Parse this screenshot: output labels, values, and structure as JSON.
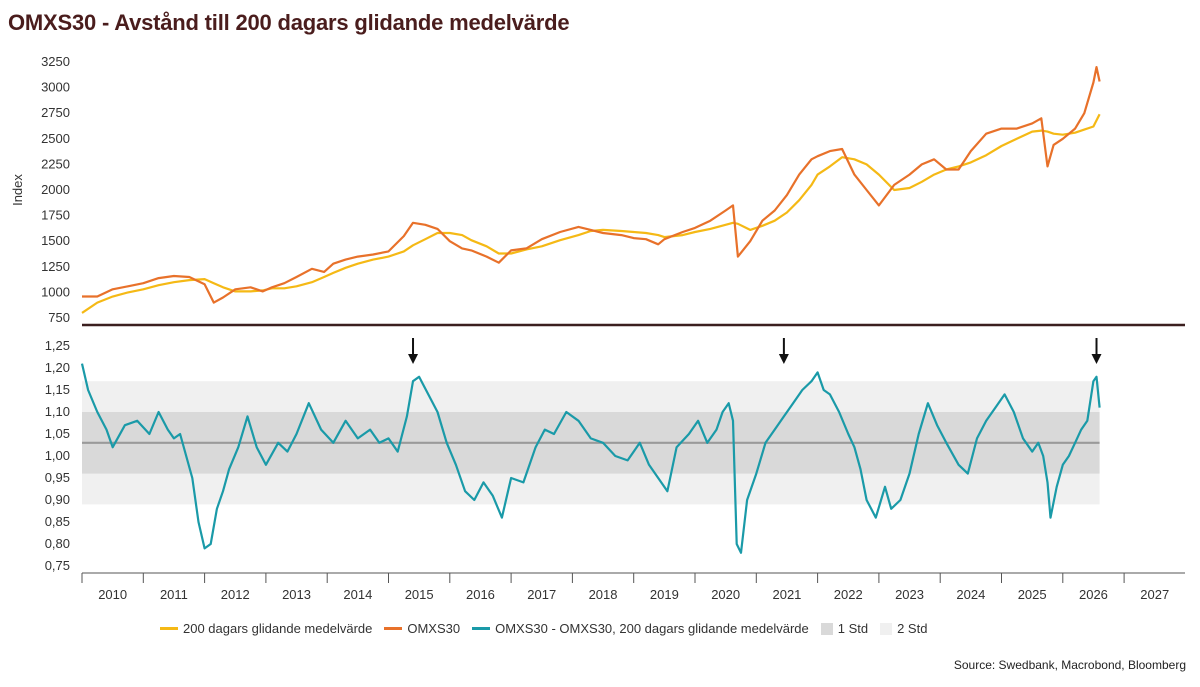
{
  "title": "OMXS30 - Avstånd till 200 dagars glidande medelvärde",
  "source": "Source: Swedbank, Macrobond, Bloomberg",
  "colors": {
    "ma200": "#f5b915",
    "omxs30": "#e8712a",
    "ratio": "#1a9aa8",
    "std1": "#d9d9d9",
    "std2": "#f0f0f0",
    "mean_line": "#9a9a9a",
    "divider": "#3b1f1f",
    "arrow": "#111111"
  },
  "legend": [
    {
      "key": "ma200",
      "label": "200 dagars glidande medelvärde",
      "kind": "line"
    },
    {
      "key": "omxs30",
      "label": "OMXS30",
      "kind": "line"
    },
    {
      "key": "ratio",
      "label": "OMXS30 - OMXS30, 200 dagars glidande medelvärde",
      "kind": "line"
    },
    {
      "key": "std1",
      "label": "1 Std",
      "kind": "box"
    },
    {
      "key": "std2",
      "label": "2 Std",
      "kind": "box"
    }
  ],
  "chart_data": [
    {
      "type": "line",
      "ylabel": "Index",
      "ylim": [
        750,
        3300
      ],
      "yticks": [
        "750",
        "1000",
        "1250",
        "1500",
        "1750",
        "2000",
        "2250",
        "2500",
        "2750",
        "3000",
        "3250"
      ],
      "x": [
        2009.5,
        2009.75,
        2010.0,
        2010.25,
        2010.5,
        2010.75,
        2011.0,
        2011.25,
        2011.5,
        2011.65,
        2011.8,
        2012.0,
        2012.25,
        2012.45,
        2012.6,
        2012.8,
        2013.0,
        2013.25,
        2013.45,
        2013.6,
        2013.8,
        2014.0,
        2014.25,
        2014.5,
        2014.75,
        2014.9,
        2015.1,
        2015.3,
        2015.5,
        2015.7,
        2015.85,
        2016.1,
        2016.3,
        2016.5,
        2016.75,
        2017.0,
        2017.3,
        2017.6,
        2017.8,
        2018.0,
        2018.3,
        2018.5,
        2018.7,
        2018.9,
        2019.0,
        2019.3,
        2019.5,
        2019.75,
        2020.0,
        2020.12,
        2020.2,
        2020.4,
        2020.6,
        2020.8,
        2021.0,
        2021.2,
        2021.4,
        2021.5,
        2021.7,
        2021.9,
        2022.1,
        2022.3,
        2022.5,
        2022.75,
        2023.0,
        2023.2,
        2023.4,
        2023.6,
        2023.8,
        2024.0,
        2024.25,
        2024.5,
        2024.75,
        2025.0,
        2025.15,
        2025.25,
        2025.35,
        2025.5,
        2025.7,
        2025.85,
        2026.0,
        2026.05,
        2026.1
      ],
      "series": [
        {
          "name": "OMXS30",
          "values": [
            960,
            960,
            1030,
            1060,
            1090,
            1140,
            1160,
            1150,
            1080,
            900,
            950,
            1030,
            1050,
            1010,
            1050,
            1090,
            1150,
            1230,
            1200,
            1280,
            1320,
            1350,
            1370,
            1400,
            1550,
            1680,
            1660,
            1620,
            1500,
            1430,
            1410,
            1350,
            1290,
            1410,
            1430,
            1520,
            1590,
            1640,
            1610,
            1580,
            1560,
            1530,
            1520,
            1470,
            1520,
            1590,
            1630,
            1700,
            1800,
            1850,
            1350,
            1500,
            1700,
            1800,
            1950,
            2150,
            2300,
            2330,
            2380,
            2400,
            2150,
            2000,
            1850,
            2050,
            2150,
            2250,
            2300,
            2200,
            2200,
            2380,
            2550,
            2600,
            2600,
            2650,
            2700,
            2230,
            2440,
            2500,
            2600,
            2750,
            3050,
            3200,
            3060
          ]
        },
        {
          "name": "200 dagars glidande medelvärde",
          "values": [
            800,
            900,
            960,
            1000,
            1030,
            1070,
            1100,
            1120,
            1130,
            1090,
            1050,
            1010,
            1010,
            1020,
            1040,
            1040,
            1060,
            1100,
            1150,
            1190,
            1240,
            1280,
            1320,
            1350,
            1400,
            1460,
            1520,
            1580,
            1580,
            1560,
            1510,
            1450,
            1380,
            1380,
            1420,
            1450,
            1510,
            1560,
            1600,
            1610,
            1600,
            1590,
            1580,
            1560,
            1540,
            1560,
            1590,
            1620,
            1660,
            1680,
            1670,
            1610,
            1650,
            1700,
            1780,
            1900,
            2050,
            2150,
            2230,
            2320,
            2300,
            2250,
            2150,
            2000,
            2020,
            2080,
            2150,
            2200,
            2230,
            2270,
            2340,
            2430,
            2500,
            2570,
            2580,
            2570,
            2550,
            2540,
            2560,
            2590,
            2620,
            2680,
            2740
          ]
        }
      ]
    },
    {
      "type": "line",
      "ylabel": "",
      "ylim": [
        0.73,
        1.27
      ],
      "yticks": [
        "0,75",
        "0,80",
        "0,85",
        "0,90",
        "0,95",
        "1,00",
        "1,05",
        "1,10",
        "1,15",
        "1,20",
        "1,25"
      ],
      "xlim": [
        2009.5,
        2027.5
      ],
      "xticks": [
        "2010",
        "2011",
        "2012",
        "2013",
        "2014",
        "2015",
        "2016",
        "2017",
        "2018",
        "2019",
        "2020",
        "2021",
        "2022",
        "2023",
        "2024",
        "2025",
        "2026",
        "2027"
      ],
      "x": [
        2009.5,
        2009.6,
        2009.75,
        2009.9,
        2010.0,
        2010.2,
        2010.4,
        2010.6,
        2010.75,
        2010.9,
        2011.0,
        2011.1,
        2011.2,
        2011.3,
        2011.4,
        2011.5,
        2011.6,
        2011.7,
        2011.8,
        2011.9,
        2012.05,
        2012.2,
        2012.35,
        2012.5,
        2012.7,
        2012.85,
        2013.0,
        2013.2,
        2013.4,
        2013.6,
        2013.8,
        2014.0,
        2014.2,
        2014.35,
        2014.5,
        2014.65,
        2014.8,
        2014.9,
        2015.0,
        2015.15,
        2015.3,
        2015.45,
        2015.6,
        2015.75,
        2015.9,
        2016.05,
        2016.2,
        2016.35,
        2016.5,
        2016.7,
        2016.9,
        2017.05,
        2017.2,
        2017.4,
        2017.6,
        2017.8,
        2018.0,
        2018.2,
        2018.4,
        2018.6,
        2018.75,
        2018.9,
        2019.05,
        2019.2,
        2019.4,
        2019.55,
        2019.7,
        2019.85,
        2019.95,
        2020.05,
        2020.12,
        2020.18,
        2020.25,
        2020.35,
        2020.5,
        2020.65,
        2020.8,
        2020.95,
        2021.1,
        2021.25,
        2021.4,
        2021.5,
        2021.6,
        2021.7,
        2021.85,
        2022.0,
        2022.1,
        2022.2,
        2022.3,
        2022.45,
        2022.6,
        2022.7,
        2022.85,
        2023.0,
        2023.15,
        2023.3,
        2023.45,
        2023.6,
        2023.8,
        2023.95,
        2024.1,
        2024.25,
        2024.4,
        2024.55,
        2024.7,
        2024.85,
        2025.0,
        2025.1,
        2025.18,
        2025.25,
        2025.3,
        2025.4,
        2025.5,
        2025.6,
        2025.7,
        2025.8,
        2025.9,
        2026.0,
        2026.05,
        2026.1
      ],
      "series": [
        {
          "name": "OMXS30 - OMXS30, 200 dagars glidande medelvärde",
          "values": [
            1.21,
            1.15,
            1.1,
            1.06,
            1.02,
            1.07,
            1.08,
            1.05,
            1.1,
            1.06,
            1.04,
            1.05,
            1.0,
            0.95,
            0.85,
            0.79,
            0.8,
            0.88,
            0.92,
            0.97,
            1.02,
            1.09,
            1.02,
            0.98,
            1.03,
            1.01,
            1.05,
            1.12,
            1.06,
            1.03,
            1.08,
            1.04,
            1.06,
            1.03,
            1.04,
            1.01,
            1.09,
            1.17,
            1.18,
            1.14,
            1.1,
            1.03,
            0.98,
            0.92,
            0.9,
            0.94,
            0.91,
            0.86,
            0.95,
            0.94,
            1.02,
            1.06,
            1.05,
            1.1,
            1.08,
            1.04,
            1.03,
            1.0,
            0.99,
            1.03,
            0.98,
            0.95,
            0.92,
            1.02,
            1.05,
            1.08,
            1.03,
            1.06,
            1.1,
            1.12,
            1.08,
            0.8,
            0.78,
            0.9,
            0.96,
            1.03,
            1.06,
            1.09,
            1.12,
            1.15,
            1.17,
            1.19,
            1.15,
            1.14,
            1.1,
            1.05,
            1.02,
            0.97,
            0.9,
            0.86,
            0.93,
            0.88,
            0.9,
            0.96,
            1.05,
            1.12,
            1.07,
            1.03,
            0.98,
            0.96,
            1.04,
            1.08,
            1.11,
            1.14,
            1.1,
            1.04,
            1.01,
            1.03,
            1.0,
            0.94,
            0.86,
            0.93,
            0.98,
            1.0,
            1.03,
            1.06,
            1.08,
            1.17,
            1.18,
            1.11
          ]
        }
      ],
      "bands": {
        "mean": 1.03,
        "std1": [
          0.96,
          1.1
        ],
        "std2": [
          0.89,
          1.17
        ],
        "x_end": 2026.1
      },
      "arrows_x": [
        2014.9,
        2020.95,
        2026.05
      ]
    }
  ]
}
